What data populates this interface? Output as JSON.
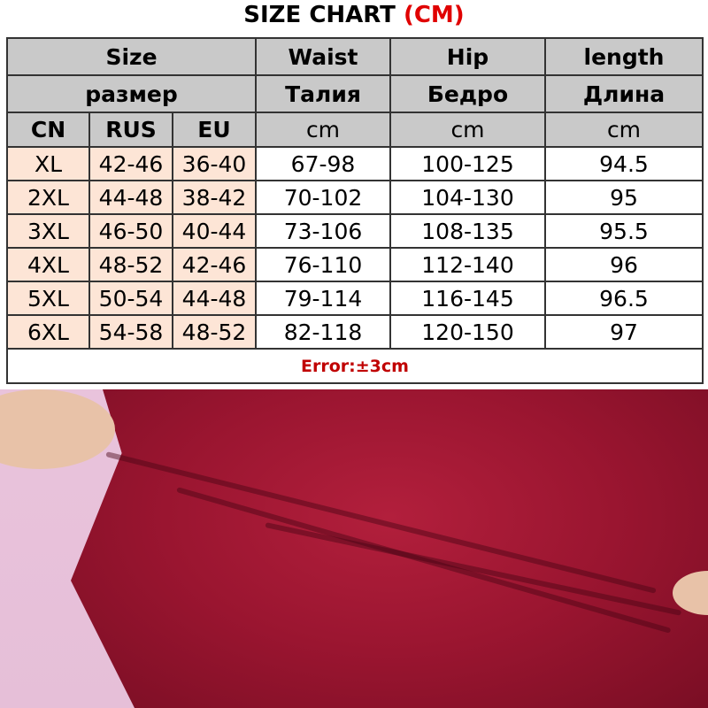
{
  "title": {
    "text": "SIZE CHART",
    "unit": "(CM)"
  },
  "header": {
    "row1": [
      "Size",
      "Waist",
      "Hip",
      "length"
    ],
    "row2": [
      "размер",
      "Талия",
      "Бедро",
      "Длина"
    ],
    "row3": [
      "CN",
      "RUS",
      "EU",
      "cm",
      "cm",
      "cm"
    ]
  },
  "rows": [
    [
      "XL",
      "42-46",
      "36-40",
      "67-98",
      "100-125",
      "94.5"
    ],
    [
      "2XL",
      "44-48",
      "38-42",
      "70-102",
      "104-130",
      "95"
    ],
    [
      "3XL",
      "46-50",
      "40-44",
      "73-106",
      "108-135",
      "95.5"
    ],
    [
      "4XL",
      "48-52",
      "42-46",
      "76-110",
      "112-140",
      "96"
    ],
    [
      "5XL",
      "50-54",
      "44-48",
      "79-114",
      "116-145",
      "96.5"
    ],
    [
      "6XL",
      "54-58",
      "48-52",
      "82-118",
      "120-150",
      "97"
    ]
  ],
  "note": "Error:±3cm",
  "colors": {
    "header_bg": "#c9c9c9",
    "size_cell_bg": "#fde5d6",
    "note": "#c00000",
    "unit": "#e00000"
  }
}
